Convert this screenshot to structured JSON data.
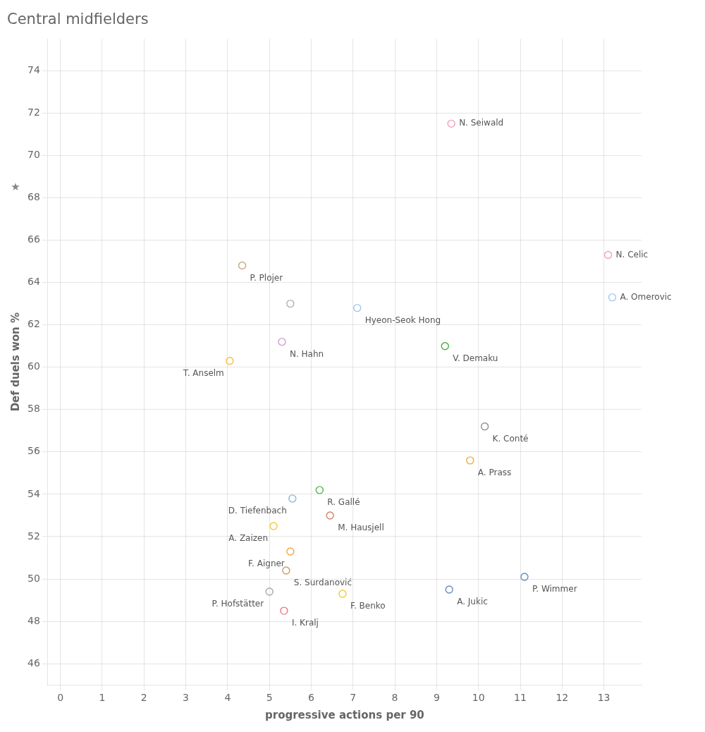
{
  "chart_data": {
    "type": "scatter",
    "title": "Central midfielders",
    "xlabel": "progressive actions per 90",
    "ylabel": "Def duels won %",
    "annotations": [
      "★"
    ],
    "xlim": [
      -0.3,
      13.9
    ],
    "ylim": [
      45.0,
      75.5
    ],
    "xticks": [
      0,
      1,
      2,
      3,
      4,
      5,
      6,
      7,
      8,
      9,
      10,
      11,
      12,
      13
    ],
    "yticks": [
      46,
      48,
      50,
      52,
      54,
      56,
      58,
      60,
      62,
      64,
      66,
      68,
      70,
      72,
      74
    ],
    "grid": true,
    "marker": "circle",
    "labels": [
      "N. Seiwald",
      "N. Celic",
      "A. Omerovic",
      "P. Plojer",
      "Hyeon-Seok Hong",
      "N. Hahn",
      "T. Anselm",
      "V. Demaku",
      "K. Conté",
      "A. Prass",
      "D. Tiefenbach",
      "R. Gallé",
      "M. Hausjell",
      "A. Zaizen",
      "F. Aigner",
      "S. Surdanović",
      "P. Hofstätter",
      "I. Kralj",
      "F. Benko",
      "A. Jukic",
      "P. Wimmer",
      null
    ],
    "x": [
      9.35,
      13.1,
      13.2,
      4.35,
      7.1,
      5.3,
      4.05,
      9.2,
      10.15,
      9.8,
      5.55,
      6.2,
      6.45,
      5.1,
      5.5,
      5.4,
      5.0,
      5.35,
      6.75,
      9.3,
      11.1,
      5.5
    ],
    "values": [
      71.5,
      65.3,
      63.3,
      64.8,
      62.8,
      61.2,
      60.3,
      61.0,
      57.2,
      55.6,
      53.8,
      54.2,
      53.0,
      52.5,
      51.3,
      50.4,
      49.4,
      48.5,
      49.3,
      49.5,
      50.1,
      63.0
    ],
    "colors": [
      "#f0a0b8",
      "#f0a0b8",
      "#a0c8f0",
      "#c8a882",
      "#a0c8f0",
      "#c8a0c8",
      "#f0c040",
      "#40b040",
      "#909090",
      "#f0a840",
      "#80b8d8",
      "#50b850",
      "#d88060",
      "#f0c840",
      "#f0a840",
      "#c8a060",
      "#a8a8a8",
      "#f07080",
      "#f0c840",
      "#6888c8",
      "#6888c8",
      "#b0b0b0"
    ]
  }
}
